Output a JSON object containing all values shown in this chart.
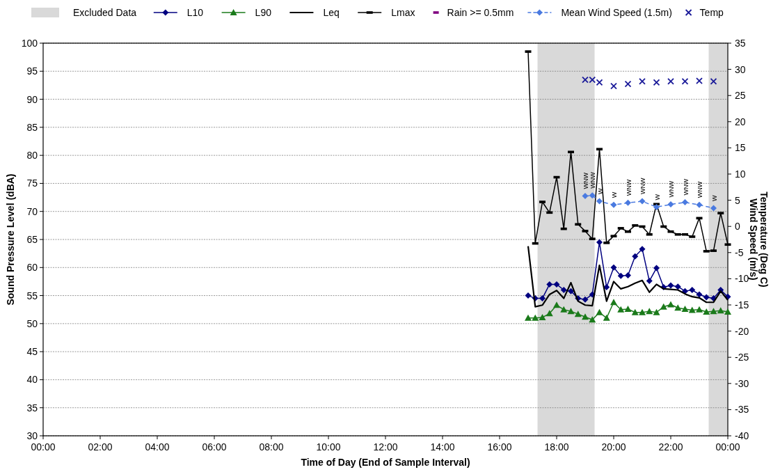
{
  "chart_data": {
    "type": "line",
    "xlabel": "Time of Day (End of Sample Interval)",
    "ylabel": "Sound Pressure Level (dBA)",
    "y2label": "Wind Speed (m/s)\nTemperature (Deg C)",
    "xlim": [
      0,
      24
    ],
    "xticks": [
      {
        "value": 0,
        "label": "00:00"
      },
      {
        "value": 2,
        "label": "02:00"
      },
      {
        "value": 4,
        "label": "04:00"
      },
      {
        "value": 6,
        "label": "06:00"
      },
      {
        "value": 8,
        "label": "08:00"
      },
      {
        "value": 10,
        "label": "10:00"
      },
      {
        "value": 12,
        "label": "12:00"
      },
      {
        "value": 14,
        "label": "14:00"
      },
      {
        "value": 16,
        "label": "16:00"
      },
      {
        "value": 18,
        "label": "18:00"
      },
      {
        "value": 20,
        "label": "20:00"
      },
      {
        "value": 22,
        "label": "22:00"
      },
      {
        "value": 24,
        "label": "00:00"
      }
    ],
    "ylim": [
      30,
      100
    ],
    "yticks": [
      30,
      35,
      40,
      45,
      50,
      55,
      60,
      65,
      70,
      75,
      80,
      85,
      90,
      95,
      100
    ],
    "y2lim": [
      -40,
      35
    ],
    "y2ticks": [
      -40,
      -35,
      -30,
      -25,
      -20,
      -15,
      -10,
      -5,
      0,
      5,
      10,
      15,
      20,
      25,
      30,
      35
    ],
    "grid": "y",
    "legend": "top",
    "bands": [
      {
        "axis": "x",
        "from": 17.33,
        "to": 19.33,
        "label": "Excluded Data",
        "color": "#d9d9d9"
      },
      {
        "axis": "x",
        "from": 23.33,
        "to": 24,
        "color": "#d9d9d9"
      }
    ],
    "series": [
      {
        "name": "L10",
        "color": "#000080",
        "marker": "diamond",
        "x": [
          17,
          17.25,
          17.5,
          17.75,
          18,
          18.25,
          18.5,
          18.75,
          19,
          19.25,
          19.5,
          19.75,
          20,
          20.25,
          20.5,
          20.75,
          21,
          21.25,
          21.5,
          21.75,
          22,
          22.25,
          22.5,
          22.75,
          23,
          23.25,
          23.5,
          23.75,
          24
        ],
        "values": [
          55.0,
          54.5,
          54.5,
          57.0,
          57.0,
          56.0,
          55.8,
          54.5,
          54.3,
          55.2,
          64.5,
          56.5,
          60.0,
          58.5,
          58.6,
          62.0,
          63.3,
          57.6,
          59.9,
          56.5,
          56.8,
          56.6,
          55.8,
          56.0,
          55.2,
          54.7,
          54.5,
          56.0,
          54.8
        ]
      },
      {
        "name": "L90",
        "color": "#1a7a1a",
        "marker": "triangle",
        "x": [
          17,
          17.25,
          17.5,
          17.75,
          18,
          18.25,
          18.5,
          18.75,
          19,
          19.25,
          19.5,
          19.75,
          20,
          20.25,
          20.5,
          20.75,
          21,
          21.25,
          21.5,
          21.75,
          22,
          22.25,
          22.5,
          22.75,
          23,
          23.25,
          23.5,
          23.75,
          24
        ],
        "values": [
          51.0,
          51.0,
          51.1,
          51.8,
          53.3,
          52.5,
          52.2,
          51.7,
          51.2,
          50.7,
          52.0,
          51.0,
          53.8,
          52.5,
          52.6,
          52.0,
          52.0,
          52.2,
          52.0,
          53.0,
          53.4,
          52.8,
          52.6,
          52.4,
          52.5,
          52.1,
          52.2,
          52.3,
          52.1
        ]
      },
      {
        "name": "Leq",
        "color": "#000000",
        "marker": "none",
        "x": [
          17,
          17.25,
          17.5,
          17.75,
          18,
          18.25,
          18.5,
          18.75,
          19,
          19.25,
          19.5,
          19.75,
          20,
          20.25,
          20.5,
          20.75,
          21,
          21.25,
          21.5,
          21.75,
          22,
          22.25,
          22.5,
          22.75,
          23,
          23.25,
          23.5,
          23.75,
          24
        ],
        "values": [
          63.8,
          53.0,
          53.3,
          55.2,
          55.9,
          54.5,
          57.3,
          54.0,
          53.3,
          53.2,
          60.4,
          54.0,
          57.5,
          56.2,
          56.6,
          57.2,
          57.7,
          55.6,
          57.0,
          56.2,
          56.1,
          56.0,
          55.3,
          54.8,
          54.6,
          53.8,
          53.8,
          55.8,
          54.2
        ]
      },
      {
        "name": "Lmax",
        "color": "#000000",
        "marker": "square",
        "x": [
          17,
          17.25,
          17.5,
          17.75,
          18,
          18.25,
          18.5,
          18.75,
          19,
          19.25,
          19.5,
          19.75,
          20,
          20.25,
          20.5,
          20.75,
          21,
          21.25,
          21.5,
          21.75,
          22,
          22.25,
          22.5,
          22.75,
          23,
          23.25,
          23.5,
          23.75,
          24
        ],
        "values": [
          98.5,
          64.3,
          71.7,
          69.8,
          76.1,
          66.9,
          80.6,
          67.7,
          66.5,
          65.1,
          81.1,
          64.4,
          65.6,
          67.0,
          66.4,
          67.5,
          67.3,
          65.9,
          71.3,
          67.3,
          66.4,
          65.9,
          65.9,
          65.5,
          68.8,
          62.9,
          63.0,
          69.7,
          64.1
        ]
      },
      {
        "name": "Rain >= 0.5mm",
        "type": "scatter",
        "color": "#800080"
      },
      {
        "name": "Mean Wind Speed (1.5m)",
        "type": "line",
        "color": "#4a7ae0",
        "marker": "diamond",
        "line_style": "dashed",
        "axis": "y2",
        "x": [
          19,
          19.25,
          19.5,
          20,
          20.5,
          21,
          21.5,
          22,
          22.5,
          23,
          23.5
        ],
        "values": [
          5.8,
          5.9,
          4.8,
          4.1,
          4.5,
          4.8,
          3.7,
          4.2,
          4.6,
          4.1,
          3.5
        ]
      },
      {
        "name": "Temp",
        "type": "scatter",
        "color": "#1a1a99",
        "marker": "cross",
        "axis": "y2",
        "x": [
          19,
          19.25,
          19.5,
          20,
          20.5,
          21,
          21.5,
          22,
          22.5,
          23,
          23.5
        ],
        "values": [
          28.0,
          28.0,
          27.5,
          26.8,
          27.2,
          27.7,
          27.5,
          27.7,
          27.7,
          27.8,
          27.7
        ]
      }
    ],
    "annotations": [
      "WNW",
      "WNW",
      "W",
      "W",
      "WNW",
      "WNW",
      "W",
      "WNW",
      "WNW",
      "WNW",
      "W"
    ]
  }
}
